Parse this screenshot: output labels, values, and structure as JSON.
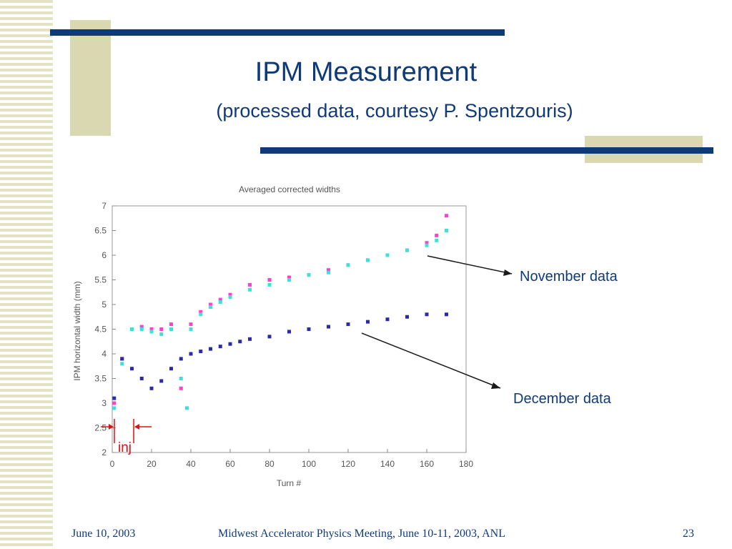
{
  "slide": {
    "title": "IPM Measurement",
    "subtitle": "(processed data, courtesy P. Spentzouris)",
    "footer_date": "June 10, 2003",
    "footer_event": "Midwest Accelerator Physics Meeting, June 10-11, 2003, ANL",
    "page_number": "23",
    "colors": {
      "accent": "#0f3a78",
      "stripe": "#e4e2c4",
      "block": "#dad8b0"
    }
  },
  "annotations": {
    "november": "November data",
    "december": "December data",
    "inj": "inj"
  },
  "chart_data": {
    "type": "scatter",
    "title": "Averaged corrected widths",
    "xlabel": "Turn #",
    "ylabel": "IPM horizontal width (mm)",
    "xlim": [
      0,
      180
    ],
    "ylim": [
      2,
      7
    ],
    "xticks": [
      0,
      20,
      40,
      60,
      80,
      100,
      120,
      140,
      160,
      180
    ],
    "yticks": [
      2,
      2.5,
      3,
      3.5,
      4,
      4.5,
      5,
      5.5,
      6,
      6.5,
      7
    ],
    "ytick_labels": [
      "2",
      "2.5",
      "3",
      "3.5",
      "4",
      "4.5",
      "5",
      "5.5",
      "6",
      "6.5",
      "7"
    ],
    "series": [
      {
        "color": "#ff3fd2",
        "x": [
          1,
          5,
          10,
          15,
          20,
          25,
          30,
          35,
          40,
          45,
          50,
          55,
          60,
          70,
          80,
          90,
          100,
          110,
          120,
          130,
          140,
          150,
          160,
          165,
          170
        ],
        "y": [
          3.0,
          3.9,
          4.5,
          4.55,
          4.5,
          4.5,
          4.6,
          3.3,
          4.6,
          4.85,
          5.0,
          5.1,
          5.2,
          5.4,
          5.5,
          5.55,
          5.6,
          5.7,
          5.8,
          5.9,
          6.0,
          6.1,
          6.25,
          6.4,
          6.8
        ]
      },
      {
        "color": "#3fe0d8",
        "x": [
          1,
          5,
          10,
          15,
          20,
          25,
          30,
          35,
          38,
          40,
          45,
          50,
          55,
          60,
          70,
          80,
          90,
          100,
          110,
          120,
          130,
          140,
          150,
          160,
          165,
          170
        ],
        "y": [
          2.9,
          3.8,
          4.5,
          4.5,
          4.45,
          4.4,
          4.5,
          3.5,
          2.9,
          4.5,
          4.8,
          4.95,
          5.05,
          5.15,
          5.3,
          5.4,
          5.5,
          5.6,
          5.65,
          5.8,
          5.9,
          6.0,
          6.1,
          6.2,
          6.3,
          6.5
        ]
      },
      {
        "color": "#2b2aa8",
        "x": [
          1,
          5,
          10,
          15,
          20,
          25,
          30,
          35,
          40,
          45,
          50,
          55,
          60,
          65,
          70,
          80,
          90,
          100,
          110,
          120,
          130,
          140,
          150,
          160,
          170
        ],
        "y": [
          3.1,
          3.9,
          3.7,
          3.5,
          3.3,
          3.45,
          3.7,
          3.9,
          4.0,
          4.05,
          4.1,
          4.15,
          4.2,
          4.25,
          4.3,
          4.35,
          4.45,
          4.5,
          4.55,
          4.6,
          4.65,
          4.7,
          4.75,
          4.8,
          4.8
        ]
      }
    ]
  }
}
